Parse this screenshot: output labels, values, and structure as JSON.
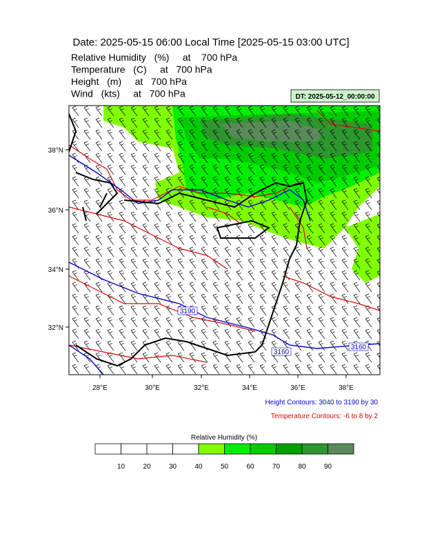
{
  "header": {
    "title": "Date: 2025-05-15  06:00 Local Time [2025-05-15  03:00 UTC]",
    "fields": [
      "Relative Humidity   (%)     at    700 hPa",
      "Temperature   (C)     at   700 hPa",
      "Height   (m)     at   700 hPa",
      "Wind   (kts)     at   700 hPa"
    ],
    "dt": "DT: 2025-05-12_00:00:00"
  },
  "map": {
    "lon_labels": [
      "28°E",
      "30°E",
      "32°E",
      "34°E",
      "36°E",
      "38°E"
    ],
    "lat_labels": [
      "38°N",
      "36°N",
      "34°N",
      "32°N"
    ],
    "contour_labels": [
      "3190",
      "3160",
      "3160"
    ]
  },
  "notes": {
    "height": "Height Contours: 3040 to 3190 by 30",
    "temperature": "Temperature Contours: -6 to 8 by 2"
  },
  "colorbar": {
    "title": "Relative Humidity  (%)",
    "levels": [
      10,
      20,
      30,
      40,
      50,
      60,
      70,
      80,
      90
    ],
    "colors": [
      "#ffffff",
      "#ffffff",
      "#ffffff",
      "#ffffff",
      "#80ff00",
      "#00ee00",
      "#00cc00",
      "#00a000",
      "#2e962e",
      "#5a8a5a"
    ]
  }
}
